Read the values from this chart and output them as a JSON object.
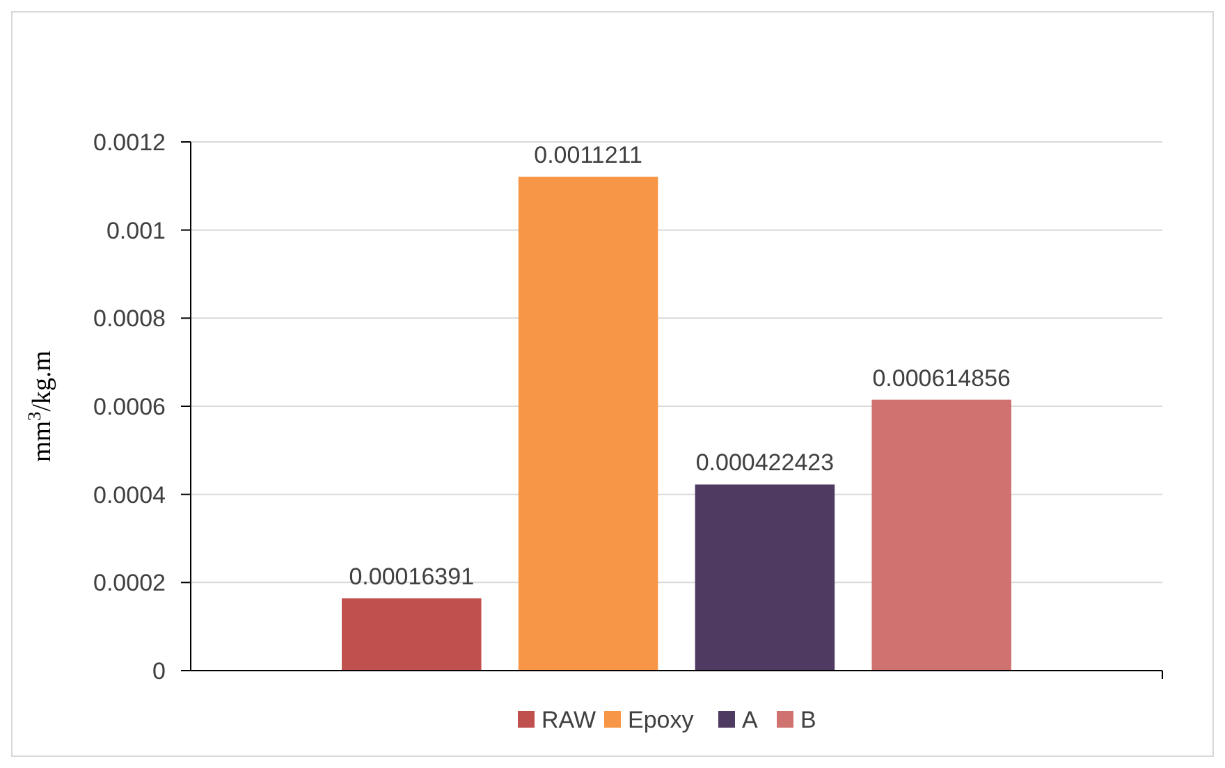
{
  "chart_data": {
    "type": "bar",
    "categories": [
      null
    ],
    "ylabel": "mm$^{3}$/kg.m",
    "series": [
      {
        "name": "RAW",
        "color": "#c0504d",
        "values": [
          0.00016391
        ]
      },
      {
        "name": "Epoxy",
        "color": "#f79646",
        "values": [
          0.0011211
        ]
      },
      {
        "name": "A",
        "color": "#4f3a62",
        "values": [
          0.000422423
        ]
      },
      {
        "name": "B",
        "color": "#cf7270",
        "values": [
          0.000614856
        ]
      }
    ],
    "ylim": [
      0,
      0.0012
    ],
    "yticks": [
      0,
      0.0002,
      0.0004,
      0.0006,
      0.0008,
      0.001,
      0.0012
    ],
    "grid": true,
    "data_labels": true,
    "legend": "bottom"
  }
}
